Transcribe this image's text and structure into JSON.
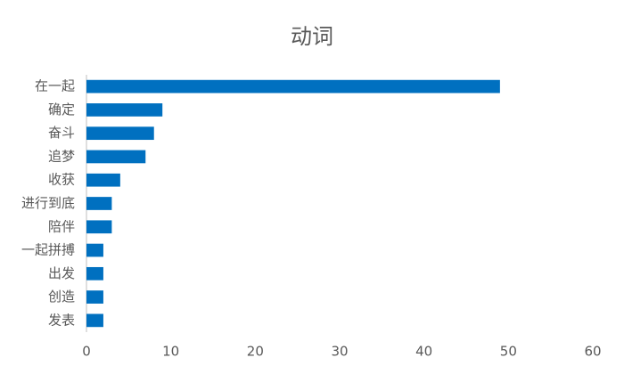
{
  "chart_data": {
    "type": "bar",
    "orientation": "horizontal",
    "title": "动词",
    "categories": [
      "在一起",
      "确定",
      "奋斗",
      "追梦",
      "收获",
      "进行到底",
      "陪伴",
      "一起拼搏",
      "出发",
      "创造",
      "发表"
    ],
    "values": [
      49,
      9,
      8,
      7,
      4,
      3,
      3,
      2,
      2,
      2,
      2
    ],
    "color": "#0070c0",
    "xlim": [
      0,
      60
    ],
    "xticks": [
      0,
      10,
      20,
      30,
      40,
      50,
      60
    ],
    "grid": false
  }
}
